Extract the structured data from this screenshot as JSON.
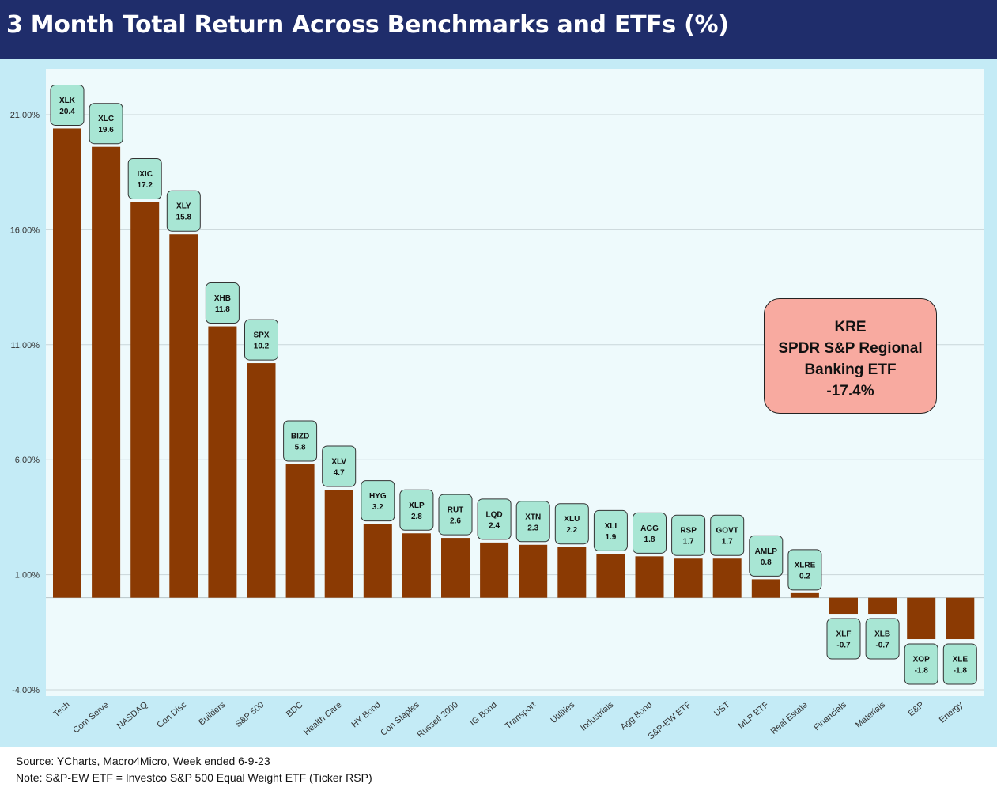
{
  "title": "3 Month Total Return Across Benchmarks and ETFs (%)",
  "footer": {
    "source": "Source: YCharts, Macro4Micro, Week ended 6-9-23",
    "note": "Note: S&P-EW ETF = Investco S&P 500 Equal Weight ETF (Ticker RSP)"
  },
  "callout": {
    "line1": "KRE",
    "line2": "SPDR S&P Regional",
    "line3": "Banking ETF",
    "line4": "-17.4%"
  },
  "colors": {
    "bar": "#8b3a03",
    "label_fill": "#a8e6d4",
    "callout_fill": "#f8aaa0",
    "header": "#1f2d6b",
    "plot_bg": "#eefafc",
    "frame_bg": "#c4ebf6"
  },
  "chart_data": {
    "type": "bar",
    "title": "3 Month Total Return Across Benchmarks and ETFs (%)",
    "categories": [
      "Tech",
      "Com Serve",
      "NASDAQ",
      "Con Disc",
      "Builders",
      "S&P 500",
      "BDC",
      "Health Care",
      "HY Bond",
      "Con Staples",
      "Russell 2000",
      "IG Bond",
      "Transport",
      "Utilities",
      "Industrials",
      "Agg Bond",
      "S&P-EW ETF",
      "UST",
      "MLP ETF",
      "Real Estate",
      "Financials",
      "Materials",
      "E&P",
      "Energy"
    ],
    "tickers": [
      "XLK",
      "XLC",
      "IXIC",
      "XLY",
      "XHB",
      "SPX",
      "BIZD",
      "XLV",
      "HYG",
      "XLP",
      "RUT",
      "LQD",
      "XTN",
      "XLU",
      "XLI",
      "AGG",
      "RSP",
      "GOVT",
      "AMLP",
      "XLRE",
      "XLF",
      "XLB",
      "XOP",
      "XLE"
    ],
    "label_texts": [
      "20.4",
      "19.6",
      "17.2",
      "15.8",
      "11.8",
      "10.2",
      "5.8",
      "4.7",
      "3.2",
      "2.8",
      "2.6",
      "2.4",
      "2.3",
      "2.2",
      "1.9",
      "1.8",
      "1.7",
      "1.7",
      "0.8",
      "0.2",
      "-0.7",
      "-0.7",
      "-1.8",
      "-1.8"
    ],
    "values": [
      20.4,
      19.6,
      17.2,
      15.8,
      11.8,
      10.2,
      5.8,
      4.7,
      3.2,
      2.8,
      2.6,
      2.4,
      2.3,
      2.2,
      1.9,
      1.8,
      1.7,
      1.7,
      0.8,
      0.2,
      -0.7,
      -0.7,
      -1.8,
      -1.8
    ],
    "yticks": [
      "21.00%",
      "16.00%",
      "11.00%",
      "6.00%",
      "1.00%",
      "-4.00%"
    ],
    "ytick_values": [
      21,
      16,
      11,
      6,
      1,
      -4
    ],
    "ylim": [
      -4,
      23
    ],
    "xlabel": "",
    "ylabel": "",
    "grid": true,
    "legend": "none"
  }
}
